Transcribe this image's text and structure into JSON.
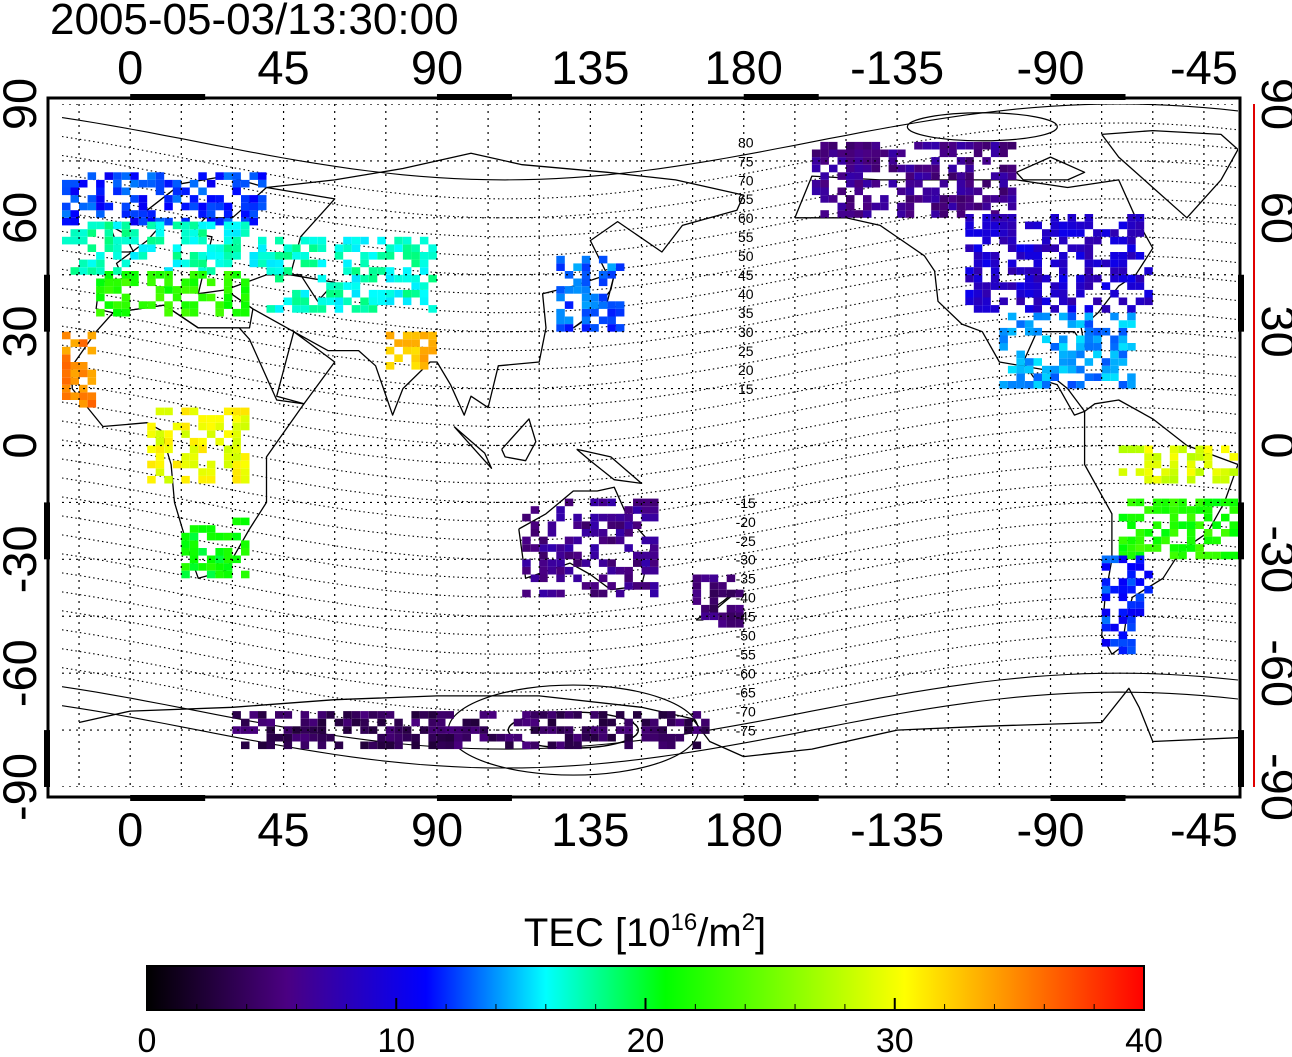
{
  "title": "2005-05-03/13:30:00",
  "map": {
    "top_lon_ticks": [
      "0",
      "45",
      "90",
      "135",
      "180",
      "-135",
      "-90",
      "-45"
    ],
    "bottom_lon_ticks": [
      "0",
      "45",
      "90",
      "135",
      "180",
      "-135",
      "-90",
      "-45"
    ],
    "left_lat_ticks": [
      "90",
      "60",
      "30",
      "0",
      "-30",
      "-60",
      "-90"
    ],
    "right_lat_ticks": [
      "90",
      "60",
      "30",
      "0",
      "-30",
      "-60",
      "-90"
    ],
    "magnetic_latitude_labels": [
      "80",
      "75",
      "70",
      "65",
      "60",
      "55",
      "50",
      "45",
      "40",
      "35",
      "30",
      "25",
      "20",
      "15",
      "-15",
      "-20",
      "-25",
      "-30",
      "-35",
      "-40",
      "-45",
      "-50",
      "-55",
      "-60",
      "-65",
      "-70",
      "-75"
    ],
    "grid": true,
    "colors": {
      "frame": "#000000",
      "right_axis_line": "#e00000",
      "land_outline": "#000000"
    }
  },
  "colorbar": {
    "label_prefix": "TEC  [10",
    "label_sup1": "16",
    "label_mid": "/m",
    "label_sup2": "2",
    "label_suffix": "]",
    "min": 0,
    "max": 40,
    "tick_labels": [
      "0",
      "10",
      "20",
      "30",
      "40"
    ],
    "colormap": [
      "#000000",
      "#4b0082",
      "#0000ff",
      "#00ffff",
      "#00ff00",
      "#ffff00",
      "#ff8000",
      "#ff0000"
    ]
  },
  "chart_data": {
    "type": "heatmap",
    "title": "2005-05-03/13:30:00",
    "xlabel": "",
    "ylabel": "",
    "x_range": [
      -20,
      325
    ],
    "y_range": [
      -90,
      90
    ],
    "value_range": [
      0,
      40
    ],
    "regions": [
      {
        "lon": [
          -20,
          40
        ],
        "lat": [
          58,
          72
        ],
        "tec": 12
      },
      {
        "lon": [
          -20,
          40
        ],
        "lat": [
          45,
          58
        ],
        "tec": 17
      },
      {
        "lon": [
          -10,
          35
        ],
        "lat": [
          34,
          45
        ],
        "tec": 22
      },
      {
        "lon": [
          -20,
          -12
        ],
        "lat": [
          10,
          30
        ],
        "tec": 35
      },
      {
        "lon": [
          5,
          35
        ],
        "lat": [
          -10,
          10
        ],
        "tec": 30
      },
      {
        "lon": [
          15,
          35
        ],
        "lat": [
          -35,
          -20
        ],
        "tec": 21
      },
      {
        "lon": [
          40,
          90
        ],
        "lat": [
          35,
          55
        ],
        "tec": 17
      },
      {
        "lon": [
          75,
          90
        ],
        "lat": [
          20,
          30
        ],
        "tec": 33
      },
      {
        "lon": [
          125,
          145
        ],
        "lat": [
          30,
          50
        ],
        "tec": 13
      },
      {
        "lon": [
          115,
          155
        ],
        "lat": [
          -40,
          -15
        ],
        "tec": 6
      },
      {
        "lon": [
          165,
          180
        ],
        "lat": [
          -48,
          -35
        ],
        "tec": 5
      },
      {
        "lon": [
          30,
          170
        ],
        "lat": [
          -80,
          -70
        ],
        "tec": 4
      },
      {
        "lon": [
          200,
          260
        ],
        "lat": [
          60,
          80
        ],
        "tec": 6
      },
      {
        "lon": [
          245,
          300
        ],
        "lat": [
          35,
          60
        ],
        "tec": 9
      },
      {
        "lon": [
          255,
          295
        ],
        "lat": [
          15,
          35
        ],
        "tec": 14
      },
      {
        "lon": [
          290,
          325
        ],
        "lat": [
          -10,
          0
        ],
        "tec": 29
      },
      {
        "lon": [
          290,
          325
        ],
        "lat": [
          -30,
          -15
        ],
        "tec": 22
      },
      {
        "lon": [
          285,
          300
        ],
        "lat": [
          -55,
          -30
        ],
        "tec": 12
      }
    ]
  }
}
